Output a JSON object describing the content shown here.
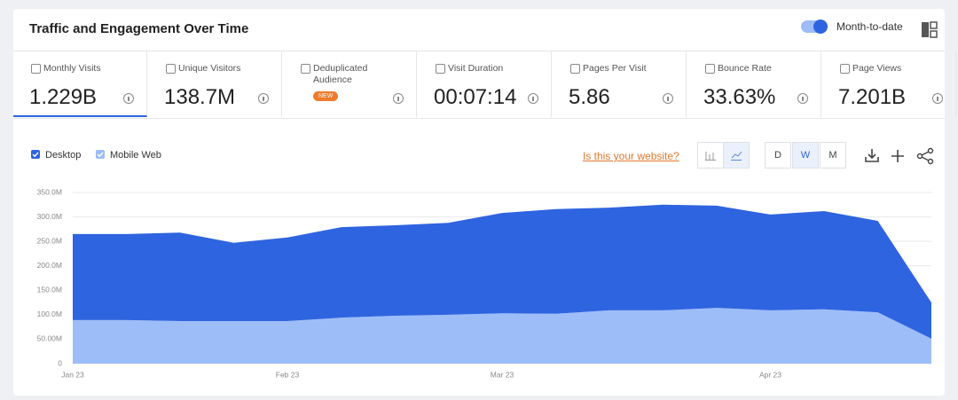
{
  "header": {
    "title": "Traffic and Engagement Over Time",
    "toggle_label": "Month-to-date"
  },
  "metrics": [
    {
      "label": "Monthly Visits",
      "value": "1.229B"
    },
    {
      "label": "Unique Visitors",
      "value": "138.7M"
    },
    {
      "label": "Deduplicated Audience",
      "badge": "NEW"
    },
    {
      "label": "Visit Duration",
      "value": "00:07:14"
    },
    {
      "label": "Pages Per Visit",
      "value": "5.86"
    },
    {
      "label": "Bounce Rate",
      "value": "33.63%"
    },
    {
      "label": "Page Views",
      "value": "7.201B"
    }
  ],
  "toolbar": {
    "link": "Is this your website?",
    "granularity": [
      "D",
      "W",
      "M"
    ],
    "selected_granularity": "W"
  },
  "chart_data": {
    "type": "area",
    "stacked": true,
    "categories": [
      "Jan 23",
      null,
      null,
      null,
      "Feb 23",
      null,
      null,
      null,
      "Mar 23",
      null,
      null,
      null,
      null,
      "Apr 23",
      null,
      null,
      null
    ],
    "series": [
      {
        "name": "Desktop",
        "color": "#2f64e0",
        "values": [
          176,
          176,
          181,
          160,
          171,
          185,
          185,
          188,
          205,
          214,
          210,
          216,
          209,
          196,
          201,
          187,
          74
        ]
      },
      {
        "name": "Mobile Web",
        "color": "#9dbdf8",
        "values": [
          89,
          89,
          87,
          87,
          87,
          94,
          98,
          100,
          103,
          102,
          109,
          109,
          114,
          109,
          111,
          105,
          51
        ]
      }
    ],
    "ylim": [
      0,
      350
    ],
    "yticks": [
      0,
      {
        "value": 50,
        "label": "50.00M"
      },
      {
        "value": 100,
        "label": "100.0M"
      },
      {
        "value": 150,
        "label": "150.0M"
      },
      {
        "value": 200,
        "label": "200.0M"
      },
      {
        "value": 250,
        "label": "250.0M"
      },
      {
        "value": 300,
        "label": "300.0M"
      },
      {
        "value": 350,
        "label": "350.0M"
      }
    ],
    "grid": true
  }
}
